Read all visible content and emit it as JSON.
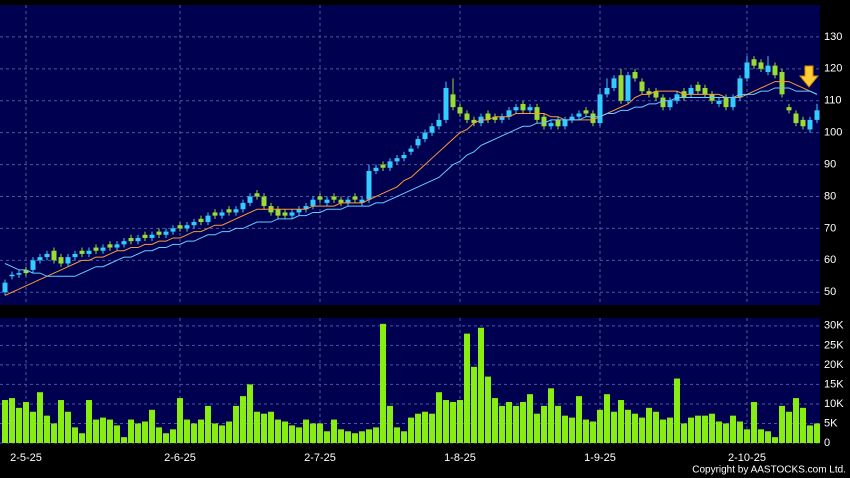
{
  "chart_data": [
    {
      "type": "candlestick",
      "open": [
        50,
        55,
        55.5,
        57,
        57,
        60,
        61,
        63,
        61,
        59,
        61,
        63,
        62,
        64,
        63,
        65,
        64,
        65,
        67,
        66,
        68,
        67,
        69,
        68,
        69,
        71,
        70,
        71,
        73,
        72,
        75,
        74,
        76,
        75,
        76,
        78,
        81,
        80,
        77,
        76,
        75,
        74,
        75,
        76,
        77,
        80,
        78,
        80,
        79,
        78,
        80,
        78,
        79,
        88,
        90,
        89,
        91,
        92,
        94,
        96,
        98,
        100,
        102,
        104,
        112,
        108,
        106,
        104,
        103,
        106,
        105,
        104,
        105,
        107,
        109,
        107,
        108,
        105,
        102,
        104,
        102,
        104,
        105,
        107,
        106,
        103,
        112,
        114,
        118,
        110,
        119,
        116,
        113,
        113,
        111,
        108,
        110,
        113,
        112,
        115,
        114,
        112,
        109,
        111,
        108,
        111,
        117,
        123,
        122,
        119,
        121,
        119,
        108,
        106,
        104,
        101,
        104
      ],
      "high": [
        54,
        56.5,
        57,
        58,
        61,
        62,
        63,
        64,
        62,
        62,
        63,
        64,
        64,
        65,
        65,
        66,
        66,
        67,
        68,
        68,
        69,
        69,
        70,
        70,
        71,
        72,
        72,
        73,
        74,
        75,
        76,
        76,
        77,
        77,
        79,
        81,
        82,
        81,
        78,
        77,
        76,
        76,
        77,
        78,
        80,
        81,
        80,
        81,
        80,
        80,
        81,
        80,
        90,
        90,
        91,
        92,
        93,
        94,
        96,
        99,
        101,
        103,
        106,
        116,
        117,
        109,
        107,
        105,
        106,
        107,
        106,
        106,
        108,
        109,
        110,
        109,
        109,
        106,
        104,
        105,
        105,
        106,
        107,
        108,
        107,
        114,
        117,
        118,
        120,
        119,
        120,
        117,
        114,
        114,
        112,
        111,
        113,
        114,
        115,
        116,
        115,
        113,
        111,
        112,
        112,
        118,
        124,
        124,
        123,
        124,
        122,
        120,
        109,
        107,
        105,
        105,
        109
      ],
      "low": [
        49,
        54,
        54.5,
        55,
        56,
        59,
        60,
        59,
        58,
        58,
        60,
        61,
        61,
        62,
        62,
        63,
        63,
        64,
        65,
        65,
        66,
        66,
        67,
        67,
        68,
        69,
        69,
        70,
        71,
        71,
        73,
        73,
        74,
        74,
        75,
        77,
        79,
        76,
        74,
        73,
        73,
        73,
        74,
        75,
        76,
        78,
        77,
        78,
        77,
        77,
        78,
        77,
        78,
        87,
        88,
        88,
        90,
        91,
        93,
        95,
        97,
        99,
        101,
        103,
        107,
        105,
        103,
        102,
        102,
        103,
        103,
        103,
        104,
        106,
        106,
        106,
        103,
        101,
        101,
        101,
        101,
        103,
        104,
        105,
        102,
        102,
        111,
        113,
        109,
        109,
        116,
        112,
        111,
        110,
        107,
        107,
        109,
        110,
        111,
        112,
        111,
        109,
        108,
        107,
        107,
        110,
        116,
        120,
        119,
        118,
        117,
        111,
        106,
        102,
        101,
        100,
        103
      ],
      "close": [
        53,
        55.5,
        56,
        56,
        60,
        61,
        62,
        60,
        59,
        61,
        62,
        62,
        63,
        63,
        64,
        64,
        65,
        66,
        66,
        67,
        67,
        68,
        68,
        69,
        70,
        70,
        71,
        72,
        72,
        74,
        74,
        75,
        75,
        76,
        78,
        80,
        80,
        77,
        75,
        74,
        74,
        75,
        76,
        77,
        79,
        79,
        79,
        79,
        78,
        79,
        79,
        79,
        88,
        89,
        89,
        91,
        92,
        93,
        95,
        98,
        100,
        102,
        104,
        114,
        108,
        106,
        104,
        103,
        105,
        104,
        104,
        105,
        107,
        108,
        107,
        108,
        104,
        102,
        103,
        102,
        104,
        105,
        106,
        106,
        103,
        112,
        114,
        117,
        110,
        118,
        117,
        113,
        112,
        111,
        108,
        110,
        112,
        111,
        114,
        113,
        112,
        110,
        110,
        108,
        111,
        117,
        122,
        121,
        120,
        121,
        118,
        112,
        107,
        103,
        102,
        104,
        107
      ],
      "up_color": "#33ccff",
      "down_color": "#99dd33",
      "lines": [
        {
          "color": "#ff9933",
          "values": [
            49,
            50,
            51,
            52,
            53,
            54,
            55,
            56,
            57,
            58,
            59,
            60,
            60,
            61,
            61,
            62,
            63,
            63,
            64,
            64,
            65,
            65,
            66,
            66,
            67,
            67,
            68,
            69,
            69,
            70,
            71,
            71,
            72,
            73,
            74,
            75,
            76,
            76,
            76,
            76,
            76,
            76,
            76,
            76,
            77,
            77,
            77,
            77,
            78,
            78,
            78,
            78,
            79,
            80,
            81,
            82,
            83,
            85,
            86,
            88,
            90,
            92,
            94,
            96,
            98,
            100,
            101,
            103,
            104,
            104,
            105,
            105,
            105,
            106,
            106,
            106,
            106,
            106,
            105,
            105,
            104,
            104,
            104,
            104,
            104,
            105,
            106,
            107,
            108,
            109,
            111,
            112,
            112,
            113,
            113,
            113,
            113,
            112,
            112,
            112,
            112,
            112,
            112,
            111,
            111,
            111,
            112,
            113,
            114,
            115,
            116,
            116,
            116,
            115,
            114,
            113,
            112
          ]
        },
        {
          "color": "#66ccff",
          "values": [
            59,
            58,
            57,
            57,
            56,
            56,
            55,
            55,
            55,
            55,
            55,
            56,
            57,
            58,
            58,
            59,
            60,
            61,
            61,
            62,
            63,
            63,
            64,
            64,
            65,
            65,
            66,
            66,
            67,
            68,
            68,
            69,
            69,
            70,
            70,
            71,
            72,
            72,
            72,
            73,
            73,
            73,
            74,
            74,
            75,
            75,
            76,
            76,
            76,
            77,
            77,
            77,
            77,
            78,
            78,
            79,
            80,
            81,
            82,
            83,
            84,
            85,
            86,
            88,
            90,
            91,
            93,
            94,
            96,
            97,
            98,
            99,
            100,
            101,
            102,
            102,
            103,
            103,
            104,
            104,
            104,
            104,
            104,
            105,
            105,
            105,
            106,
            106,
            107,
            107,
            108,
            108,
            109,
            109,
            110,
            110,
            111,
            111,
            111,
            111,
            111,
            111,
            111,
            111,
            111,
            112,
            112,
            112,
            113,
            113,
            114,
            114,
            114,
            113,
            113,
            113,
            112
          ]
        }
      ],
      "ylim": [
        46,
        140
      ],
      "yticks": [
        50,
        60,
        70,
        80,
        90,
        100,
        110,
        120,
        130
      ],
      "grid": true
    },
    {
      "type": "bar",
      "categories": [
        null,
        null,
        null,
        "2-5-25",
        null,
        null,
        null,
        null,
        null,
        null,
        null,
        null,
        null,
        null,
        null,
        null,
        null,
        null,
        null,
        null,
        null,
        null,
        null,
        null,
        null,
        "2-6-25",
        null,
        null,
        null,
        null,
        null,
        null,
        null,
        null,
        null,
        null,
        null,
        null,
        null,
        null,
        null,
        null,
        null,
        null,
        null,
        "2-7-25",
        null,
        null,
        null,
        null,
        null,
        null,
        null,
        null,
        null,
        null,
        null,
        null,
        null,
        null,
        null,
        null,
        null,
        null,
        null,
        "1-8-25",
        null,
        null,
        null,
        null,
        null,
        null,
        null,
        null,
        null,
        null,
        null,
        null,
        null,
        null,
        null,
        null,
        null,
        null,
        null,
        "1-9-25",
        null,
        null,
        null,
        null,
        null,
        null,
        null,
        null,
        null,
        null,
        null,
        null,
        null,
        null,
        null,
        null,
        null,
        null,
        null,
        null,
        "2-10-25",
        null,
        null,
        null,
        null,
        null,
        null,
        null,
        null,
        null,
        null
      ],
      "values": [
        11000,
        11500,
        9000,
        10500,
        8000,
        13000,
        7000,
        5000,
        11000,
        8000,
        4000,
        2500,
        11000,
        6000,
        6500,
        6000,
        4500,
        1500,
        6000,
        5000,
        5500,
        8500,
        4000,
        2500,
        3500,
        11500,
        6000,
        5000,
        6000,
        9500,
        5000,
        4500,
        5500,
        9500,
        12000,
        15000,
        8000,
        7500,
        8000,
        6000,
        5500,
        4500,
        4000,
        6000,
        5000,
        5000,
        3000,
        6000,
        3500,
        3000,
        2500,
        3000,
        3500,
        4000,
        30500,
        9500,
        4000,
        3000,
        6500,
        7500,
        8000,
        7500,
        13000,
        11000,
        10500,
        11000,
        28000,
        19500,
        29500,
        17000,
        11500,
        9500,
        10500,
        9500,
        10500,
        12500,
        7500,
        9500,
        14000,
        9500,
        7000,
        6500,
        12000,
        6000,
        5500,
        8500,
        12500,
        8000,
        11000,
        8500,
        7500,
        6500,
        9000,
        8000,
        6000,
        6500,
        16500,
        5000,
        6500,
        7000,
        7000,
        7500,
        5500,
        5000,
        7000,
        5500,
        3500,
        10500,
        3500,
        3000,
        1500,
        9500,
        8000,
        11500,
        9000,
        4500,
        5000
      ],
      "color": "#88ee11",
      "ylim": [
        0,
        32000
      ],
      "yticks": [
        0,
        {
          "value": 5000,
          "label": "5K"
        },
        {
          "value": 10000,
          "label": "10K"
        },
        {
          "value": 15000,
          "label": "15K"
        },
        {
          "value": 20000,
          "label": "20K"
        },
        {
          "value": 25000,
          "label": "25K"
        },
        {
          "value": 30000,
          "label": "30K"
        }
      ],
      "grid": true
    }
  ],
  "copyright": "Copyright by AASTOCKS.com Ltd."
}
